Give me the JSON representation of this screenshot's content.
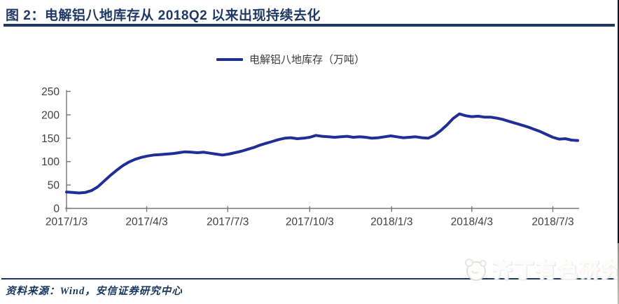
{
  "figure": {
    "title": "图 2：电解铝八地库存从 2018Q2 以来出现持续去化",
    "source_note": "资料来源：Wind，安信证券研究中心",
    "watermark_text": "齐丁有色研究"
  },
  "legend": {
    "label": "电解铝八地库存（万吨）"
  },
  "colors": {
    "title_navy": "#1F3864",
    "line_navy": "#1F2F96",
    "axis_gray": "#777777",
    "tick_text": "#3f3f3f",
    "source_navy": "#17375E"
  },
  "chart_data": {
    "type": "line",
    "title": "电解铝八地库存从 2018Q2 以来出现持续去化",
    "legend_entries": [
      "电解铝八地库存（万吨）"
    ],
    "legend_position": "top-center",
    "grid": false,
    "unit": "万吨",
    "ylim": [
      0,
      250
    ],
    "y_ticks": [
      0,
      50,
      100,
      150,
      200,
      250
    ],
    "x_start_date": "2017/1/3",
    "x_interval_days": 7,
    "x_ticks": [
      {
        "label": "2017/1/3",
        "day": 0
      },
      {
        "label": "2017/4/3",
        "day": 90
      },
      {
        "label": "2017/7/3",
        "day": 181
      },
      {
        "label": "2017/10/3",
        "day": 273
      },
      {
        "label": "2018/1/3",
        "day": 365
      },
      {
        "label": "2018/4/3",
        "day": 455
      },
      {
        "label": "2018/7/3",
        "day": 546
      }
    ],
    "series": [
      {
        "name": "电解铝八地库存",
        "values": [
          35,
          34,
          33,
          34,
          38,
          46,
          58,
          70,
          81,
          91,
          99,
          105,
          109,
          112,
          114,
          115,
          116,
          117,
          119,
          121,
          120,
          119,
          120,
          118,
          116,
          114,
          116,
          119,
          122,
          126,
          130,
          135,
          139,
          143,
          147,
          150,
          151,
          149,
          150,
          152,
          156,
          154,
          153,
          152,
          153,
          154,
          152,
          153,
          152,
          150,
          151,
          153,
          155,
          153,
          151,
          152,
          153,
          151,
          150,
          156,
          166,
          178,
          192,
          202,
          198,
          196,
          197,
          195,
          195,
          193,
          190,
          186,
          182,
          178,
          174,
          169,
          164,
          158,
          152,
          148,
          149,
          146,
          145
        ]
      }
    ]
  }
}
